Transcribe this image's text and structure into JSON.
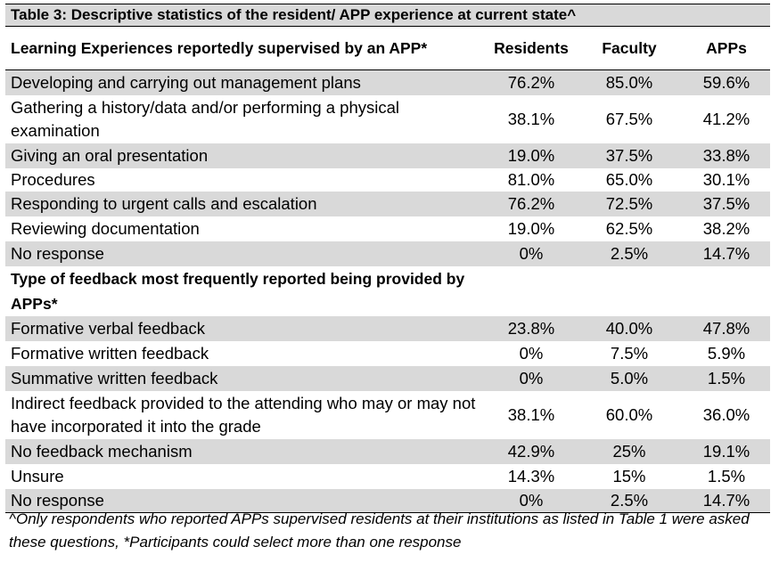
{
  "title": "Table 3:  Descriptive statistics of the resident/ APP experience at current state^",
  "header": {
    "label": "Learning Experiences reportedly supervised by an APP*",
    "residents": "Residents",
    "faculty": "Faculty",
    "apps": "APPs"
  },
  "learning_rows": [
    {
      "label": "Developing and carrying out management plans",
      "residents": "76.2%",
      "faculty": "85.0%",
      "apps": "59.6%"
    },
    {
      "label": "Gathering a history/data and/or performing a physical examination",
      "residents": "38.1%",
      "faculty": "67.5%",
      "apps": "41.2%"
    },
    {
      "label": "Giving an oral presentation",
      "residents": "19.0%",
      "faculty": "37.5%",
      "apps": "33.8%"
    },
    {
      "label": "Procedures",
      "residents": "81.0%",
      "faculty": "65.0%",
      "apps": "30.1%"
    },
    {
      "label": "Responding to urgent calls and escalation",
      "residents": "76.2%",
      "faculty": "72.5%",
      "apps": "37.5%"
    },
    {
      "label": "Reviewing documentation",
      "residents": "19.0%",
      "faculty": "62.5%",
      "apps": "38.2%"
    },
    {
      "label": "No response",
      "residents": "0%",
      "faculty": "2.5%",
      "apps": "14.7%"
    }
  ],
  "feedback_section_label": "Type of feedback most frequently reported being provided by APPs*",
  "feedback_rows": [
    {
      "label": "Formative verbal feedback",
      "residents": "23.8%",
      "faculty": "40.0%",
      "apps": "47.8%"
    },
    {
      "label": "Formative written feedback",
      "residents": "0%",
      "faculty": "7.5%",
      "apps": "5.9%"
    },
    {
      "label": "Summative written feedback",
      "residents": "0%",
      "faculty": "5.0%",
      "apps": "1.5%"
    },
    {
      "label": "Indirect feedback provided to the attending who may or may not have incorporated it into the grade",
      "residents": "38.1%",
      "faculty": "60.0%",
      "apps": "36.0%"
    },
    {
      "label": "No feedback mechanism",
      "residents": "42.9%",
      "faculty": "25%",
      "apps": "19.1%"
    },
    {
      "label": "Unsure",
      "residents": "14.3%",
      "faculty": "15%",
      "apps": "1.5%"
    },
    {
      "label": "No response",
      "residents": "0%",
      "faculty": "2.5%",
      "apps": "14.7%"
    }
  ],
  "footnote": "^Only respondents who reported APPs supervised residents at their institutions as listed in Table 1 were asked these questions, *Participants could select more than one response"
}
